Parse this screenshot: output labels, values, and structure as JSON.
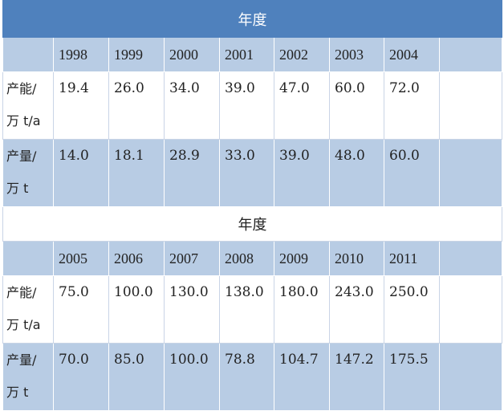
{
  "sections": [
    {
      "title": "年度",
      "years": [
        "1998",
        "1999",
        "2000",
        "2001",
        "2002",
        "2003",
        "2004"
      ],
      "rows": [
        {
          "label": [
            "产能/",
            "万 t/a"
          ],
          "values": [
            "19.4",
            "26.0",
            "34.0",
            "39.0",
            "47.0",
            "60.0",
            "72.0"
          ]
        },
        {
          "label": [
            "产量/",
            "万 t"
          ],
          "values": [
            "14.0",
            "18.1",
            "28.9",
            "33.0",
            "39.0",
            "48.0",
            "60.0"
          ]
        }
      ]
    },
    {
      "title": "年度",
      "years": [
        "2005",
        "2006",
        "2007",
        "2008",
        "2009",
        "2010",
        "2011"
      ],
      "rows": [
        {
          "label": [
            "产能/",
            "万 t/a"
          ],
          "values": [
            "75.0",
            "100.0",
            "130.0",
            "138.0",
            "180.0",
            "243.0",
            "250.0"
          ]
        },
        {
          "label": [
            "产量/",
            "万 t"
          ],
          "values": [
            "70.0",
            "85.0",
            "100.0",
            "78.8",
            "104.7",
            "147.2",
            "175.5"
          ]
        }
      ]
    }
  ]
}
